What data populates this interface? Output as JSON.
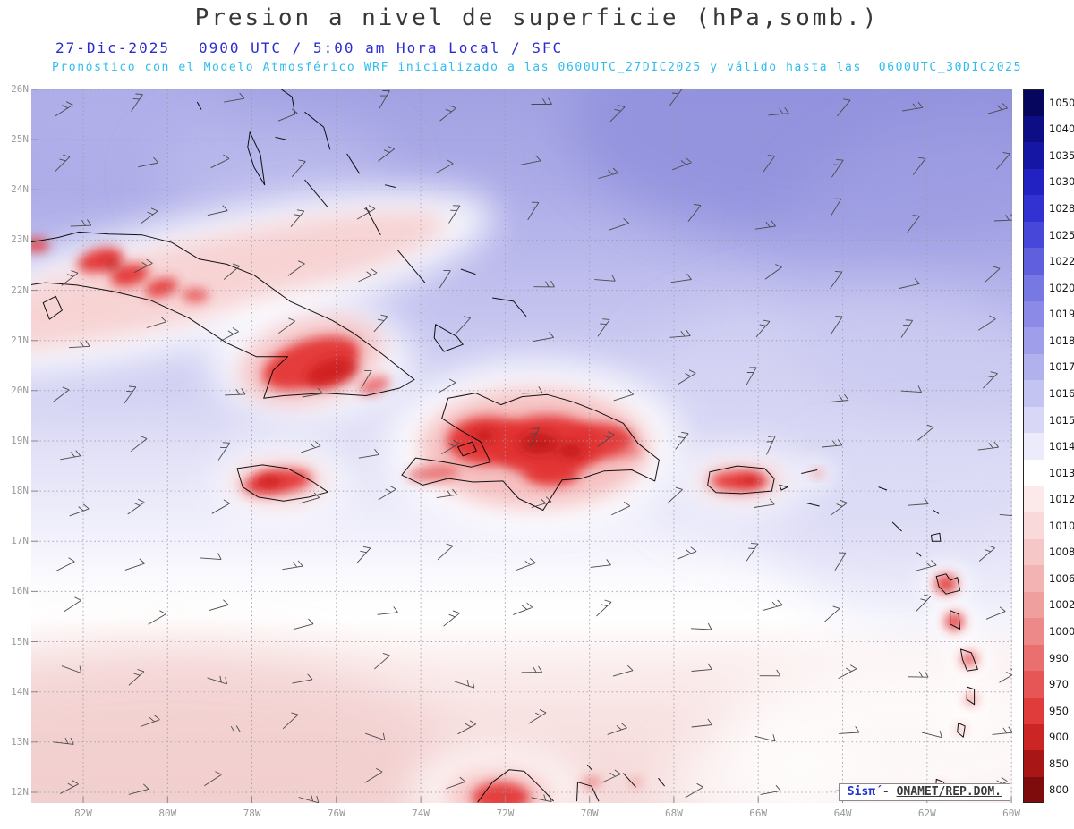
{
  "header": {
    "title": "Presion a nivel de superficie (hPa,somb.)",
    "date": "27-Dic-2025",
    "time_info": "0900 UTC / 5:00 am Hora Local / SFC",
    "forecast_line": "Pronóstico con el Modelo Atmosférico WRF inicializado a las 0600UTC_27DIC2025 y válido hasta las  0600UTC_30DIC2025"
  },
  "colors": {
    "title": "#383838",
    "datetime": "#2b2bd0",
    "forecast": "#2fbdee",
    "axis_labels": "#9a9a9a",
    "credit_brand": "#2233cc",
    "credit_text": "#3a3a3a",
    "sea_high_pressure": "#a2a2e3",
    "sea_low_pressure": "#f5dada",
    "terrain_shading_core": "#e23030",
    "coastline": "#000000",
    "wind_barb": "#4a4a4a"
  },
  "axes": {
    "lat_ticks": [
      "26N",
      "25N",
      "24N",
      "23N",
      "22N",
      "21N",
      "20N",
      "19N",
      "18N",
      "17N",
      "16N",
      "15N",
      "14N",
      "13N",
      "12N"
    ],
    "lon_ticks": [
      "82W",
      "80W",
      "78W",
      "76W",
      "74W",
      "72W",
      "70W",
      "68W",
      "66W",
      "64W",
      "62W",
      "60W"
    ]
  },
  "colorbar": {
    "levels": [
      "1050",
      "1040",
      "1035",
      "1030",
      "1028",
      "1025",
      "1022",
      "1020",
      "1019",
      "1018",
      "1017",
      "1016",
      "1015",
      "1014",
      "1013",
      "1012",
      "1010",
      "1008",
      "1006",
      "1002",
      "1000",
      "990",
      "970",
      "950",
      "900",
      "850",
      "800"
    ],
    "colors": [
      "#06065e",
      "#0d0d85",
      "#1616a5",
      "#2222c2",
      "#3232d2",
      "#4747da",
      "#6060df",
      "#7878e3",
      "#8b8be7",
      "#9e9eea",
      "#b1b1ee",
      "#c4c4f2",
      "#d8d8f6",
      "#ebebfb",
      "#ffffff",
      "#fce9e9",
      "#f9d9d9",
      "#f6c7c7",
      "#f3b3b3",
      "#f09f9f",
      "#ed8989",
      "#ea7070",
      "#e65656",
      "#e13c3c",
      "#cb2525",
      "#a81616",
      "#7e0c0c"
    ]
  },
  "credit": {
    "brand": "Sisπ́",
    "separator": " - ",
    "org": "ONAMET/REP.DOM."
  },
  "chart_data": {
    "type": "heatmap",
    "title": "Presion a nivel de superficie (hPa,somb.)",
    "valid_time": "27-Dic-2025 0900 UTC / 5:00 am Hora Local / SFC",
    "model": "WRF",
    "initialized": "0600UTC_27DIC2025",
    "valid_until": "0600UTC_30DIC2025",
    "lat_ticks_deg_north": [
      26,
      25,
      24,
      23,
      22,
      21,
      20,
      19,
      18,
      17,
      16,
      15,
      14,
      13,
      12
    ],
    "lon_ticks_deg_west": [
      82,
      80,
      78,
      76,
      74,
      72,
      70,
      68,
      66,
      64,
      62,
      60
    ],
    "lat_range_deg_north": [
      11.8,
      26.0
    ],
    "lon_range_deg_west": [
      83.2,
      60.0
    ],
    "colorbar_levels_hPa": [
      1050,
      1040,
      1035,
      1030,
      1028,
      1025,
      1022,
      1020,
      1019,
      1018,
      1017,
      1016,
      1015,
      1014,
      1013,
      1012,
      1010,
      1008,
      1006,
      1002,
      1000,
      990,
      970,
      950,
      900,
      850,
      800
    ],
    "legend_position": "right",
    "grid": "dotted, 1° latitude / 2° longitude",
    "field_summary": [
      {
        "region": "Atlántico al norte del dominio (23N-26N)",
        "pressure_hPa": "1017-1020"
      },
      {
        "region": "Aguas alrededor de Cuba, Hispaniola y Puerto Rico",
        "pressure_hPa": "1014-1017"
      },
      {
        "region": "Banda central blanca (15N-17N)",
        "pressure_hPa": "1013-1014"
      },
      {
        "region": "Mar Caribe sur (12N-14N)",
        "pressure_hPa": "1010-1013"
      },
      {
        "region": "Terreno elevado de Cuba, Jamaica, Hispaniola, Puerto Rico y Antillas Menores (sombreado rojo)",
        "pressure_hPa": "<=1008"
      }
    ],
    "wind": "Barbas de viento alisio del este-noreste distribuidas sobre todo el dominio"
  }
}
